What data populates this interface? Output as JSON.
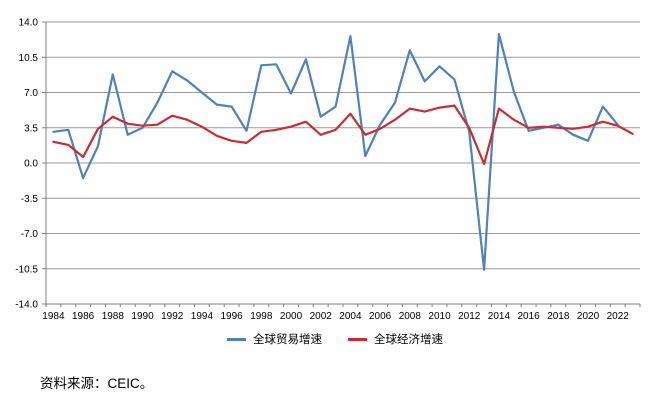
{
  "source_note": "资料来源：CEIC。",
  "chart_data": {
    "type": "line",
    "title": "",
    "xlabel": "",
    "ylabel": "",
    "ylim": [
      -14,
      14
    ],
    "y_tick_step": 3.5,
    "y_tick_labels": [
      "14.0",
      "10.5",
      "7.0",
      "3.5",
      "0.0",
      "-3.5",
      "-7.0",
      "-10.5",
      "-14.0"
    ],
    "y_tick_values": [
      14,
      10.5,
      7,
      3.5,
      0,
      -3.5,
      -7,
      -10.5,
      -14
    ],
    "x_tick_labels": [
      "1984",
      "1986",
      "1988",
      "1990",
      "1992",
      "1994",
      "1996",
      "1998",
      "2000",
      "2002",
      "2004",
      "2006",
      "2008",
      "2010",
      "2012",
      "2014",
      "2016",
      "2018",
      "2020",
      "2022"
    ],
    "years": [
      1984,
      1985,
      1986,
      1987,
      1988,
      1989,
      1990,
      1991,
      1992,
      1993,
      1994,
      1995,
      1996,
      1997,
      1998,
      1999,
      2000,
      2001,
      2002,
      2003,
      2004,
      2005,
      2006,
      2007,
      2008,
      2009,
      2010,
      2011,
      2012,
      2013,
      2014,
      2015,
      2016,
      2017,
      2018,
      2019,
      2020,
      2021,
      2022,
      2023
    ],
    "grid": "horizontal",
    "legend_position": "bottom-center",
    "colors": {
      "trade": "#4F81BD",
      "gdp": "#CB2C30",
      "gridline": "#9B9B9B",
      "axis": "#808080",
      "label": "#000000"
    },
    "series": [
      {
        "id": "trade",
        "name": "全球贸易增速",
        "color": "#4F81BD",
        "values": [
          3.1,
          3.3,
          -1.5,
          1.7,
          8.8,
          2.8,
          3.5,
          6.0,
          9.1,
          8.2,
          7.0,
          5.8,
          5.6,
          3.2,
          9.7,
          9.8,
          6.9,
          10.3,
          4.6,
          5.6,
          12.6,
          0.7,
          3.8,
          6.0,
          11.2,
          8.1,
          9.6,
          8.3,
          3.1,
          -10.6,
          12.8,
          7.1,
          3.2,
          3.5,
          3.8,
          2.8,
          2.2,
          5.6,
          3.8,
          null
        ]
      },
      {
        "id": "gdp",
        "name": "全球经济增速",
        "color": "#CB2C30",
        "values": [
          2.1,
          1.8,
          0.6,
          3.4,
          4.6,
          3.9,
          3.7,
          3.8,
          4.7,
          4.3,
          3.6,
          2.7,
          2.2,
          2.0,
          3.1,
          3.3,
          3.6,
          4.1,
          2.8,
          3.3,
          4.9,
          2.8,
          3.4,
          4.3,
          5.4,
          5.1,
          5.5,
          5.7,
          3.5,
          -0.1,
          5.4,
          4.3,
          3.5,
          3.6,
          3.5,
          3.4,
          3.6,
          4.1,
          3.7,
          2.9
        ]
      }
    ]
  }
}
